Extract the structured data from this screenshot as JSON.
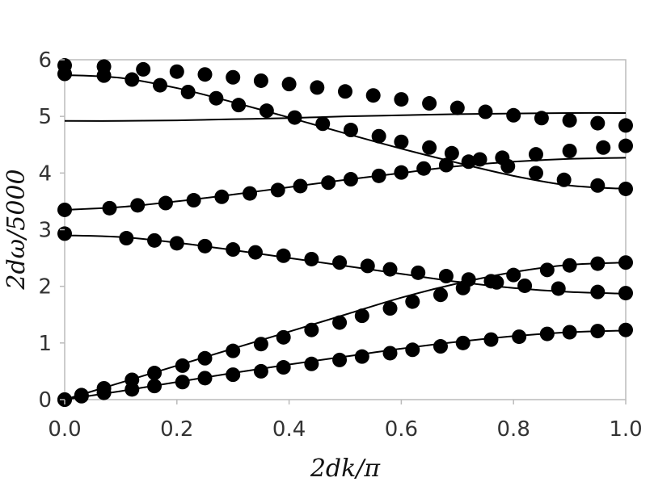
{
  "chart_data": {
    "type": "scatter",
    "title": "",
    "xlabel": "2dk/π",
    "ylabel": "2dω/5000",
    "xlim": [
      0,
      1
    ],
    "ylim": [
      0,
      6
    ],
    "xticks": [
      0.0,
      0.2,
      0.4,
      0.6,
      0.8,
      1.0
    ],
    "xtick_labels": [
      "0.0",
      "0.2",
      "0.4",
      "0.6",
      "0.8",
      "1.0"
    ],
    "yticks": [
      0,
      1,
      2,
      3,
      4,
      5,
      6
    ],
    "ytick_labels": [
      "0",
      "1",
      "2",
      "3",
      "4",
      "5",
      "6"
    ],
    "grid": false,
    "legend": "none",
    "colors": {
      "marks": "#000000",
      "frame": "#bbbbbb",
      "text": "#333333"
    },
    "curves": [
      {
        "x": [
          0,
          0.1,
          0.2,
          0.3,
          0.4,
          0.5,
          0.6,
          0.7,
          0.8,
          0.9,
          1.0
        ],
        "y": [
          0,
          0.15,
          0.31,
          0.47,
          0.62,
          0.76,
          0.9,
          1.02,
          1.12,
          1.19,
          1.22
        ]
      },
      {
        "x": [
          0,
          0.1,
          0.2,
          0.3,
          0.4,
          0.5,
          0.6,
          0.7,
          0.8,
          0.9,
          1.0
        ],
        "y": [
          0,
          0.3,
          0.6,
          0.9,
          1.2,
          1.5,
          1.8,
          2.05,
          2.25,
          2.38,
          2.42
        ]
      },
      {
        "x": [
          0,
          0.1,
          0.2,
          0.3,
          0.4,
          0.5,
          0.6,
          0.7,
          0.8,
          0.9,
          1.0
        ],
        "y": [
          2.9,
          2.87,
          2.77,
          2.64,
          2.5,
          2.36,
          2.22,
          2.08,
          1.97,
          1.9,
          1.87
        ]
      },
      {
        "x": [
          0,
          0.1,
          0.2,
          0.3,
          0.4,
          0.5,
          0.6,
          0.7,
          0.8,
          0.9,
          1.0
        ],
        "y": [
          3.35,
          3.4,
          3.5,
          3.62,
          3.75,
          3.88,
          4.0,
          4.12,
          4.2,
          4.25,
          4.27
        ]
      },
      {
        "x": [
          0,
          0.1,
          0.2,
          0.3,
          0.4,
          0.5,
          0.6,
          0.7,
          0.8,
          0.9,
          1.0
        ],
        "y": [
          4.92,
          4.92,
          4.93,
          4.95,
          4.97,
          5.0,
          5.02,
          5.04,
          5.05,
          5.06,
          5.06
        ]
      },
      {
        "x": [
          0,
          0.1,
          0.2,
          0.3,
          0.4,
          0.5,
          0.6,
          0.7,
          0.8,
          0.9,
          1.0
        ],
        "y": [
          5.73,
          5.68,
          5.5,
          5.25,
          4.98,
          4.7,
          4.43,
          4.18,
          3.95,
          3.78,
          3.72
        ]
      }
    ],
    "series": [
      {
        "x": [
          0,
          0.03,
          0.07,
          0.12,
          0.16,
          0.21,
          0.25,
          0.3,
          0.35,
          0.39,
          0.44,
          0.49,
          0.53,
          0.58,
          0.62,
          0.67,
          0.71,
          0.76,
          0.81,
          0.86,
          0.9,
          0.95,
          1.0
        ],
        "y": [
          0,
          0.06,
          0.12,
          0.18,
          0.24,
          0.31,
          0.38,
          0.44,
          0.5,
          0.57,
          0.63,
          0.7,
          0.76,
          0.82,
          0.88,
          0.94,
          1.0,
          1.06,
          1.11,
          1.16,
          1.19,
          1.21,
          1.23
        ]
      },
      {
        "x": [
          0,
          0.03,
          0.07,
          0.12,
          0.16,
          0.21,
          0.25,
          0.3,
          0.35,
          0.39,
          0.44,
          0.49,
          0.53,
          0.58,
          0.62,
          0.67,
          0.71,
          0.76,
          0.8,
          0.86,
          0.9,
          0.95,
          1.0
        ],
        "y": [
          0,
          0.08,
          0.2,
          0.35,
          0.47,
          0.6,
          0.73,
          0.86,
          0.98,
          1.1,
          1.23,
          1.36,
          1.48,
          1.61,
          1.73,
          1.85,
          1.97,
          2.09,
          2.2,
          2.29,
          2.37,
          2.4,
          2.42
        ]
      },
      {
        "x": [
          0,
          0.11,
          0.16,
          0.2,
          0.25,
          0.3,
          0.34,
          0.39,
          0.44,
          0.49,
          0.54,
          0.58,
          0.63,
          0.68,
          0.72,
          0.77,
          0.82,
          0.88,
          0.95,
          1.0
        ],
        "y": [
          2.93,
          2.85,
          2.81,
          2.76,
          2.71,
          2.65,
          2.6,
          2.54,
          2.48,
          2.42,
          2.36,
          2.3,
          2.24,
          2.18,
          2.12,
          2.07,
          2.01,
          1.96,
          1.9,
          1.88
        ]
      },
      {
        "x": [
          0,
          0.08,
          0.13,
          0.18,
          0.23,
          0.28,
          0.33,
          0.38,
          0.42,
          0.47,
          0.51,
          0.56,
          0.6,
          0.64,
          0.68,
          0.72,
          0.78,
          0.84,
          0.9,
          0.96,
          1.0
        ],
        "y": [
          3.35,
          3.38,
          3.43,
          3.47,
          3.52,
          3.58,
          3.64,
          3.7,
          3.77,
          3.83,
          3.89,
          3.95,
          4.01,
          4.08,
          4.14,
          4.2,
          4.27,
          4.33,
          4.39,
          4.45,
          4.48
        ]
      },
      {
        "x": [
          0,
          0.07,
          0.14,
          0.2,
          0.25,
          0.3,
          0.35,
          0.4,
          0.45,
          0.5,
          0.55,
          0.6,
          0.65,
          0.7,
          0.75,
          0.8,
          0.85,
          0.9,
          0.95,
          1.0
        ],
        "y": [
          5.9,
          5.88,
          5.83,
          5.79,
          5.74,
          5.69,
          5.63,
          5.57,
          5.51,
          5.44,
          5.37,
          5.3,
          5.23,
          5.15,
          5.08,
          5.02,
          4.97,
          4.93,
          4.88,
          4.84
        ]
      },
      {
        "x": [
          0,
          0.07,
          0.12,
          0.17,
          0.22,
          0.27,
          0.31,
          0.36,
          0.41,
          0.46,
          0.51,
          0.56,
          0.6,
          0.65,
          0.69,
          0.74,
          0.79,
          0.84,
          0.89,
          0.95,
          1.0
        ],
        "y": [
          5.75,
          5.72,
          5.65,
          5.55,
          5.43,
          5.32,
          5.2,
          5.1,
          4.98,
          4.87,
          4.76,
          4.65,
          4.55,
          4.45,
          4.35,
          4.24,
          4.12,
          4.0,
          3.88,
          3.78,
          3.72
        ]
      }
    ]
  }
}
